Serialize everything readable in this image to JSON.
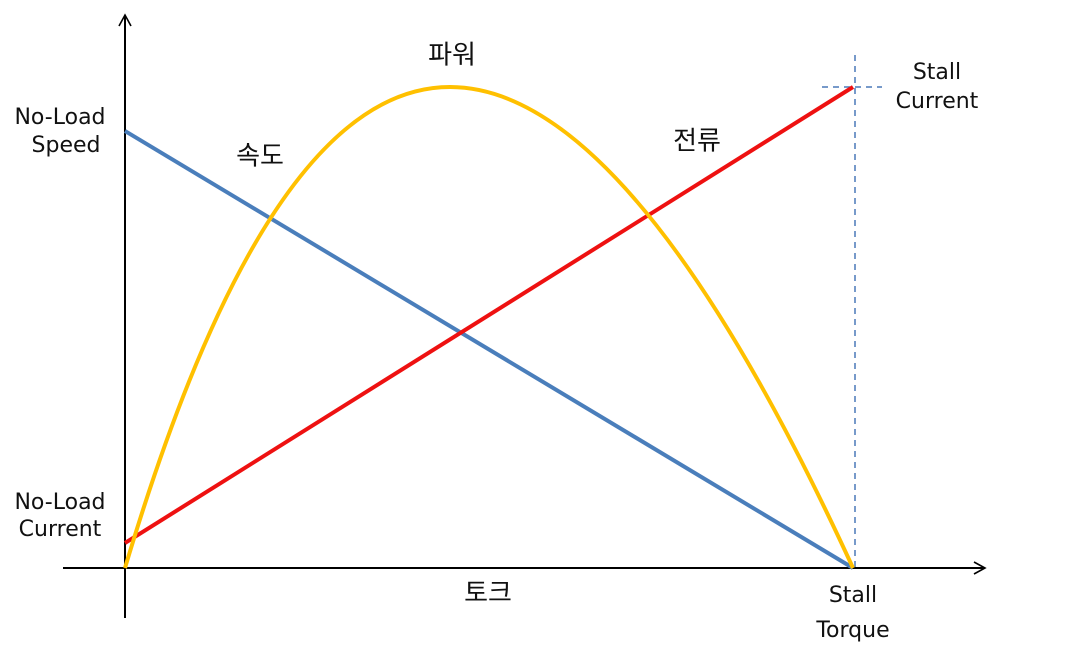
{
  "axes": {
    "y_top_label": [
      "No-Load",
      "Speed"
    ],
    "y_bottom_label": [
      "No-Load",
      "Current"
    ],
    "x_label": "토크",
    "x_end_label": [
      "Stall",
      "Torque"
    ],
    "right_label": [
      "Stall",
      "Current"
    ]
  },
  "curves": {
    "speed": "속도",
    "power": "파워",
    "current": "전류"
  }
}
